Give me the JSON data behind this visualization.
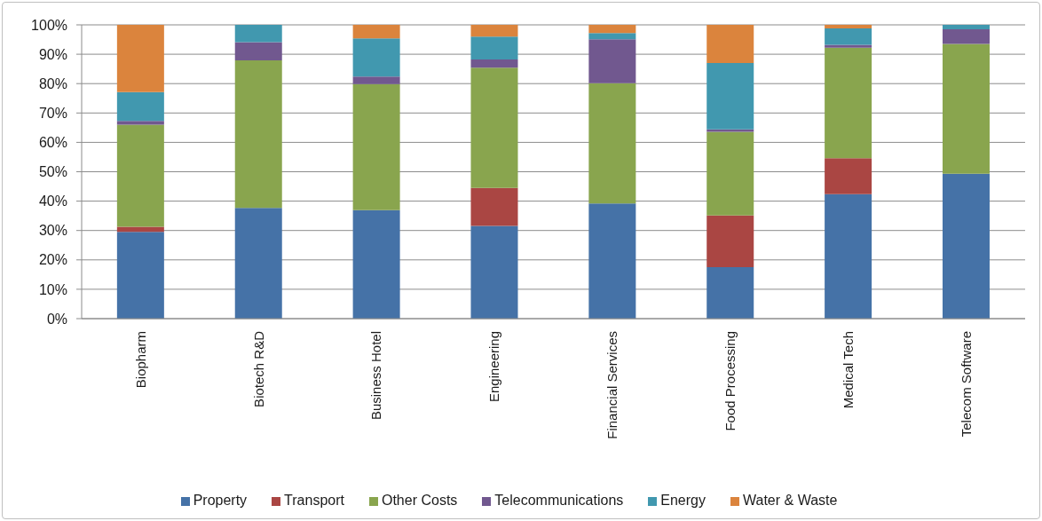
{
  "chart_data": {
    "type": "bar",
    "stacked": true,
    "categories": [
      "Biopharm",
      "Biotech R&D",
      "Business Hotel",
      "Engineering",
      "Financial Services",
      "Food Processing",
      "Medical Tech",
      "Telecom Software"
    ],
    "series": [
      {
        "name": "Property",
        "color": "#4572a7",
        "values": [
          29.5,
          37.7,
          36.9,
          31.6,
          39.2,
          17.5,
          42.4,
          49.3
        ]
      },
      {
        "name": "Transport",
        "color": "#aa4643",
        "values": [
          1.8,
          0,
          0,
          12.9,
          0,
          17.6,
          12.2,
          0
        ]
      },
      {
        "name": "Other Costs",
        "color": "#89a54e",
        "values": [
          34.7,
          50.2,
          42.9,
          40.9,
          40.9,
          28.5,
          37.6,
          44.2
        ]
      },
      {
        "name": "Telecommunications",
        "color": "#71588f",
        "values": [
          1.3,
          6.2,
          2.6,
          2.8,
          15.0,
          0.8,
          1.0,
          5.0
        ]
      },
      {
        "name": "Energy",
        "color": "#4198af",
        "values": [
          9.8,
          5.9,
          13.0,
          7.8,
          2.1,
          22.6,
          5.6,
          1.5
        ]
      },
      {
        "name": "Water & Waste",
        "color": "#db843d",
        "values": [
          22.9,
          0,
          4.6,
          4.0,
          2.8,
          13.0,
          1.2,
          0
        ]
      }
    ],
    "ylim": [
      0,
      100
    ],
    "yticks": [
      {
        "value": 0,
        "label": "0%"
      },
      {
        "value": 10,
        "label": "10%"
      },
      {
        "value": 20,
        "label": "20%"
      },
      {
        "value": 30,
        "label": "30%"
      },
      {
        "value": 40,
        "label": "40%"
      },
      {
        "value": 50,
        "label": "50%"
      },
      {
        "value": 60,
        "label": "60%"
      },
      {
        "value": 70,
        "label": "70%"
      },
      {
        "value": 80,
        "label": "80%"
      },
      {
        "value": 90,
        "label": "90%"
      },
      {
        "value": 100,
        "label": "100%"
      }
    ],
    "grid": "y",
    "legend": "bottom"
  }
}
